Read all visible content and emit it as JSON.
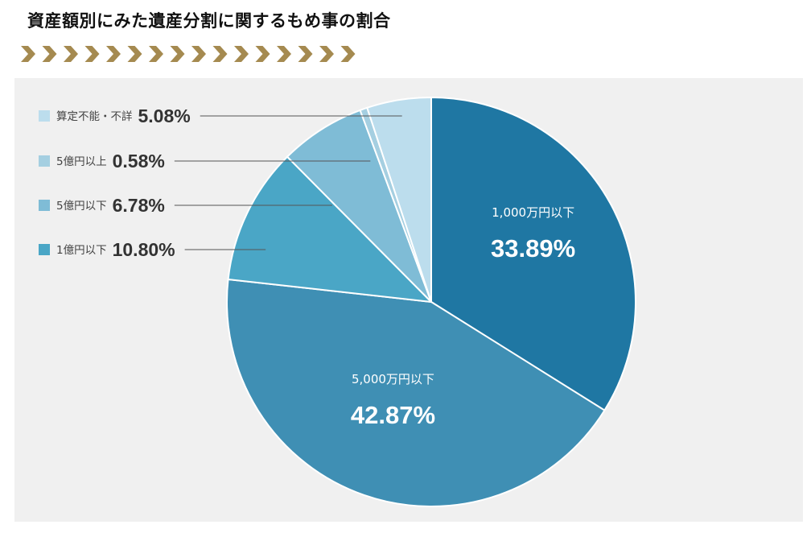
{
  "header": {
    "title": "資産額別にみた遺産分割に関するもめ事の割合"
  },
  "colors": {
    "chevron": "#a58a50",
    "panel_bg": "#f0f0f0",
    "leader_line": "#555555"
  },
  "chart_data": {
    "type": "pie",
    "title": "資産額別にみた遺産分割に関するもめ事の割合",
    "unit": "%",
    "start_angle_deg": 0,
    "direction": "clockwise",
    "legend_position": "left",
    "slices": [
      {
        "label": "1,000万円以下",
        "value": 33.89,
        "value_text": "33.89%",
        "color": "#1f77a3",
        "label_style": "inside"
      },
      {
        "label": "5,000万円以下",
        "value": 42.87,
        "value_text": "42.87%",
        "color": "#3f8fb4",
        "label_style": "inside"
      },
      {
        "label": "1億円以下",
        "value": 10.8,
        "value_text": "10.80%",
        "color": "#4aa6c6",
        "label_style": "legend"
      },
      {
        "label": "5億円以下",
        "value": 6.78,
        "value_text": "6.78%",
        "color": "#7fbcd6",
        "label_style": "legend"
      },
      {
        "label": "5億円以上",
        "value": 0.58,
        "value_text": "0.58%",
        "color": "#a5cfe1",
        "label_style": "legend"
      },
      {
        "label": "算定不能・不詳",
        "value": 5.08,
        "value_text": "5.08%",
        "color": "#bcdded",
        "label_style": "legend"
      }
    ],
    "legend_order": [
      "算定不能・不詳",
      "5億円以上",
      "5億円以下",
      "1億円以下"
    ]
  }
}
